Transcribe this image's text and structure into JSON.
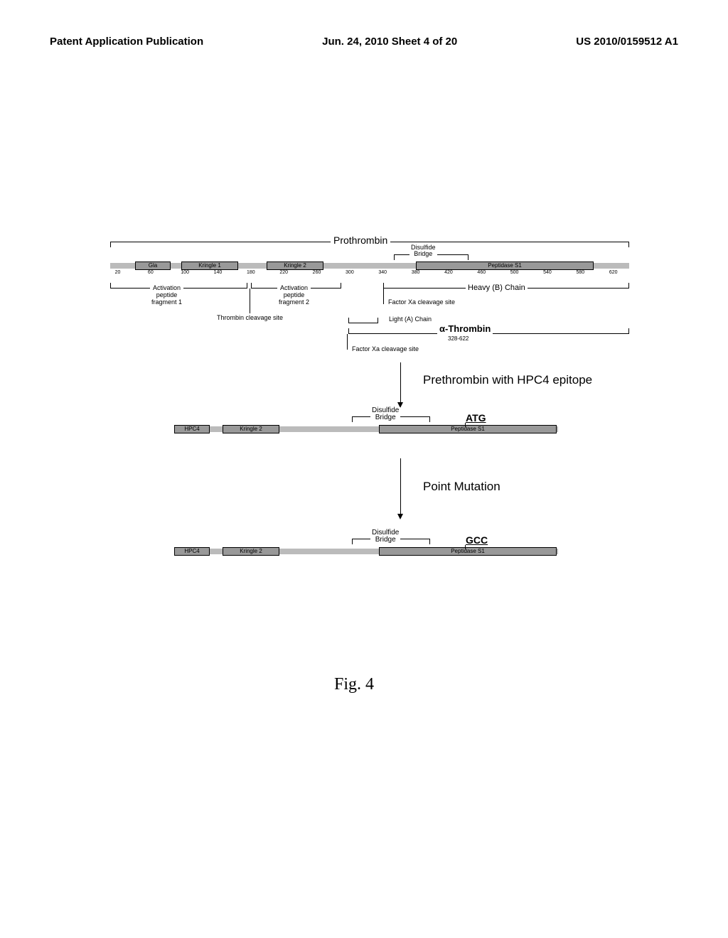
{
  "header": {
    "left": "Patent Application Publication",
    "center": "Jun. 24, 2010  Sheet 4 of 20",
    "right": "US 2010/0159512 A1"
  },
  "figure_label": "Fig. 4",
  "prothrombin": {
    "label": "Prothrombin",
    "disulfide_label": "Disulfide\nBridge",
    "ticks": [
      {
        "pos": 20,
        "label": "20"
      },
      {
        "pos": 60,
        "label": "60"
      },
      {
        "pos": 100,
        "label": "100"
      },
      {
        "pos": 140,
        "label": "140"
      },
      {
        "pos": 180,
        "label": "180"
      },
      {
        "pos": 220,
        "label": "220"
      },
      {
        "pos": 260,
        "label": "260"
      },
      {
        "pos": 300,
        "label": "300"
      },
      {
        "pos": 340,
        "label": "340"
      },
      {
        "pos": 380,
        "label": "380"
      },
      {
        "pos": 420,
        "label": "420"
      },
      {
        "pos": 460,
        "label": "460"
      },
      {
        "pos": 500,
        "label": "500"
      },
      {
        "pos": 540,
        "label": "540"
      },
      {
        "pos": 580,
        "label": "580"
      },
      {
        "pos": 620,
        "label": "620"
      }
    ],
    "domains": [
      {
        "name": "Gla",
        "start": 45,
        "end": 88
      },
      {
        "name": "Kringle 1",
        "start": 108,
        "end": 188
      },
      {
        "name": "Kringle 2",
        "start": 218,
        "end": 298
      },
      {
        "name": "Peptidase S1",
        "start": 408,
        "end": 645
      }
    ],
    "annotations": {
      "activation_1": "Activation\npeptide\nfragment 1",
      "activation_2": "Activation\npeptide\nfragment 2",
      "thrombin_cleavage": "Thrombin cleavage site",
      "heavy_chain": "Heavy (B) Chain",
      "light_chain": "Light (A) Chain",
      "factor_xa_1": "Factor Xa cleavage site",
      "factor_xa_2": "Factor Xa cleavage site",
      "alpha_thrombin": "α-Thrombin",
      "alpha_range": "328-622"
    }
  },
  "prethrombin": {
    "section_label": "Prethrombin with HPC4 epitope",
    "disulfide_label": "Disulfide\nBridge",
    "codon": "ATG",
    "domains": [
      {
        "name": "HPC4",
        "start": 0,
        "end": 50
      },
      {
        "name": "Kringle 2",
        "start": 68,
        "end": 148
      },
      {
        "name": "Peptidase S1",
        "start": 258,
        "end": 495
      }
    ]
  },
  "point_mutation": {
    "label": "Point Mutation",
    "disulfide_label": "Disulfide\nBridge",
    "codon": "GCC",
    "domains": [
      {
        "name": "HPC4",
        "start": 0,
        "end": 50
      },
      {
        "name": "Kringle 2",
        "start": 68,
        "end": 148
      },
      {
        "name": "Peptidase S1",
        "start": 258,
        "end": 495
      }
    ]
  },
  "colors": {
    "background": "#ffffff",
    "bar_fill": "#bbbbbb",
    "domain_fill": "#999999",
    "text": "#000000"
  }
}
